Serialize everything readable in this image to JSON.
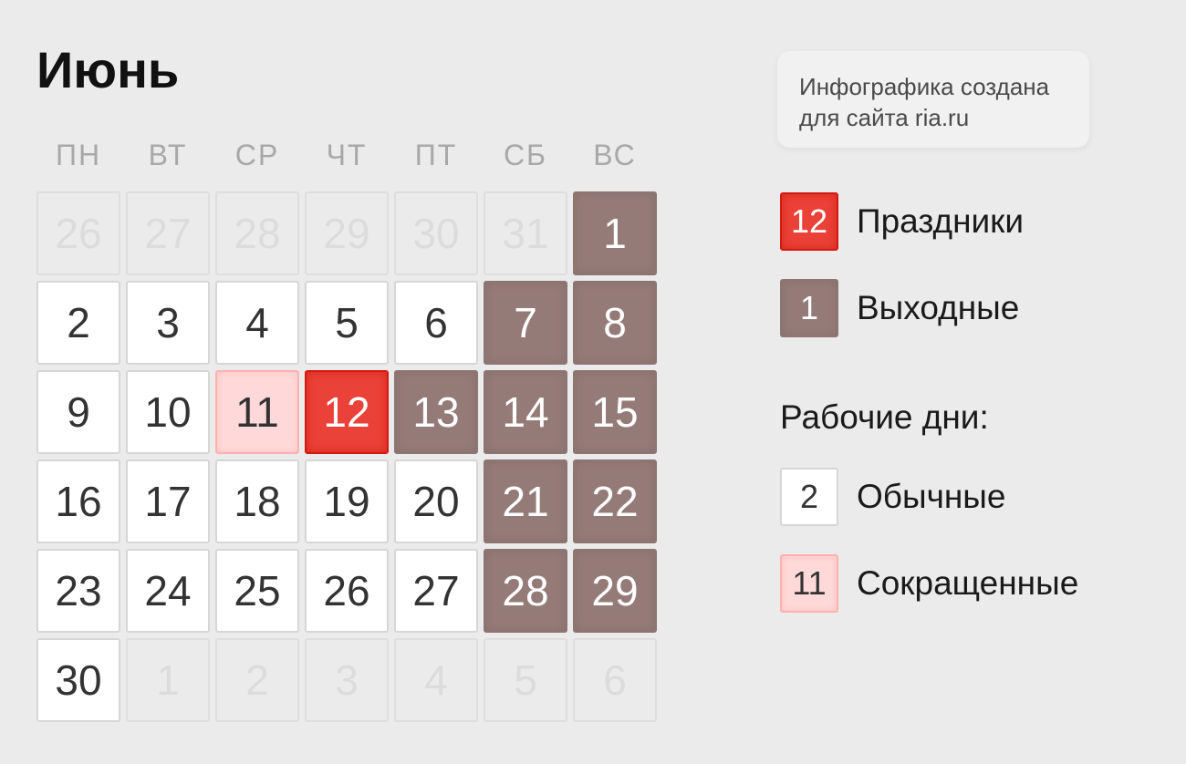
{
  "title": "Июнь",
  "weekdays": [
    "ПН",
    "ВТ",
    "СР",
    "ЧТ",
    "ПТ",
    "СБ",
    "ВС"
  ],
  "weeks": [
    [
      {
        "d": "26",
        "t": "other"
      },
      {
        "d": "27",
        "t": "other"
      },
      {
        "d": "28",
        "t": "other"
      },
      {
        "d": "29",
        "t": "other"
      },
      {
        "d": "30",
        "t": "other"
      },
      {
        "d": "31",
        "t": "other"
      },
      {
        "d": "1",
        "t": "weekend"
      }
    ],
    [
      {
        "d": "2",
        "t": "work"
      },
      {
        "d": "3",
        "t": "work"
      },
      {
        "d": "4",
        "t": "work"
      },
      {
        "d": "5",
        "t": "work"
      },
      {
        "d": "6",
        "t": "work"
      },
      {
        "d": "7",
        "t": "weekend"
      },
      {
        "d": "8",
        "t": "weekend"
      }
    ],
    [
      {
        "d": "9",
        "t": "work"
      },
      {
        "d": "10",
        "t": "work"
      },
      {
        "d": "11",
        "t": "short"
      },
      {
        "d": "12",
        "t": "holiday"
      },
      {
        "d": "13",
        "t": "weekend"
      },
      {
        "d": "14",
        "t": "weekend"
      },
      {
        "d": "15",
        "t": "weekend"
      }
    ],
    [
      {
        "d": "16",
        "t": "work"
      },
      {
        "d": "17",
        "t": "work"
      },
      {
        "d": "18",
        "t": "work"
      },
      {
        "d": "19",
        "t": "work"
      },
      {
        "d": "20",
        "t": "work"
      },
      {
        "d": "21",
        "t": "weekend"
      },
      {
        "d": "22",
        "t": "weekend"
      }
    ],
    [
      {
        "d": "23",
        "t": "work"
      },
      {
        "d": "24",
        "t": "work"
      },
      {
        "d": "25",
        "t": "work"
      },
      {
        "d": "26",
        "t": "work"
      },
      {
        "d": "27",
        "t": "work"
      },
      {
        "d": "28",
        "t": "weekend"
      },
      {
        "d": "29",
        "t": "weekend"
      }
    ],
    [
      {
        "d": "30",
        "t": "work"
      },
      {
        "d": "1",
        "t": "other"
      },
      {
        "d": "2",
        "t": "other"
      },
      {
        "d": "3",
        "t": "other"
      },
      {
        "d": "4",
        "t": "other"
      },
      {
        "d": "5",
        "t": "other"
      },
      {
        "d": "6",
        "t": "other"
      }
    ]
  ],
  "info": {
    "line1": "Инфографика создана",
    "line2": "для сайта ria.ru"
  },
  "legend": {
    "holiday": {
      "num": "12",
      "label": "Праздники"
    },
    "weekend": {
      "num": "1",
      "label": "Выходные"
    },
    "working_header": "Рабочие дни:",
    "work": {
      "num": "2",
      "label": "Обычные"
    },
    "short": {
      "num": "11",
      "label": "Сокращенные"
    }
  },
  "colors": {
    "holiday": "#ea4138",
    "weekend": "#957b78",
    "short": "#ffd9d9",
    "work": "#ffffff",
    "background": "#ebebeb"
  }
}
